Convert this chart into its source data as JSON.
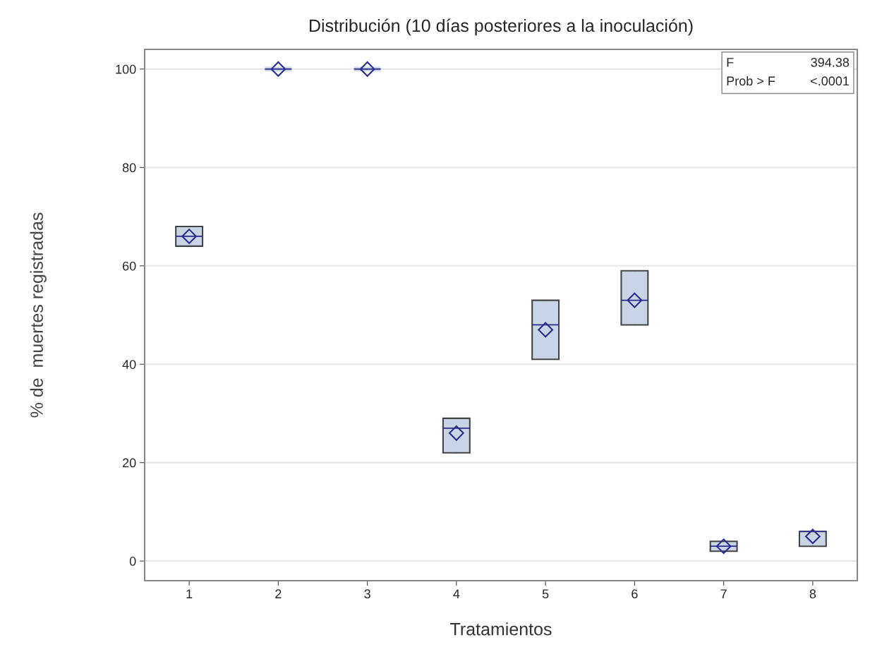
{
  "chart_data": {
    "type": "box",
    "title": "Distribución (10 días posteriores a la inoculación)",
    "xlabel": "Tratamientos",
    "ylabel": "% de  muertes registradas",
    "categories": [
      "1",
      "2",
      "3",
      "4",
      "5",
      "6",
      "7",
      "8"
    ],
    "boxes": [
      {
        "low": 64,
        "q1": 64,
        "median": 66,
        "q3": 68,
        "high": 68,
        "mean": 66
      },
      {
        "low": 100,
        "q1": 100,
        "median": 100,
        "q3": 100,
        "high": 100,
        "mean": 100
      },
      {
        "low": 100,
        "q1": 100,
        "median": 100,
        "q3": 100,
        "high": 100,
        "mean": 100
      },
      {
        "low": 22,
        "q1": 22,
        "median": 27,
        "q3": 29,
        "high": 29,
        "mean": 26
      },
      {
        "low": 41,
        "q1": 41,
        "median": 48,
        "q3": 53,
        "high": 53,
        "mean": 47
      },
      {
        "low": 48,
        "q1": 48,
        "median": 53,
        "q3": 59,
        "high": 59,
        "mean": 53
      },
      {
        "low": 2,
        "q1": 2,
        "median": 3,
        "q3": 4,
        "high": 4,
        "mean": 3
      },
      {
        "low": 3,
        "q1": 3,
        "median": 6,
        "q3": 6,
        "high": 6,
        "mean": 5
      }
    ],
    "color": "#c9d5e7",
    "ylim": [
      -4,
      104
    ],
    "yticks": [
      0,
      20,
      40,
      60,
      80,
      100
    ],
    "grid": "y",
    "legend": false,
    "marker": "diamond",
    "annotations": [
      "F",
      "394.38",
      "Prob > F",
      "<.0001"
    ]
  }
}
